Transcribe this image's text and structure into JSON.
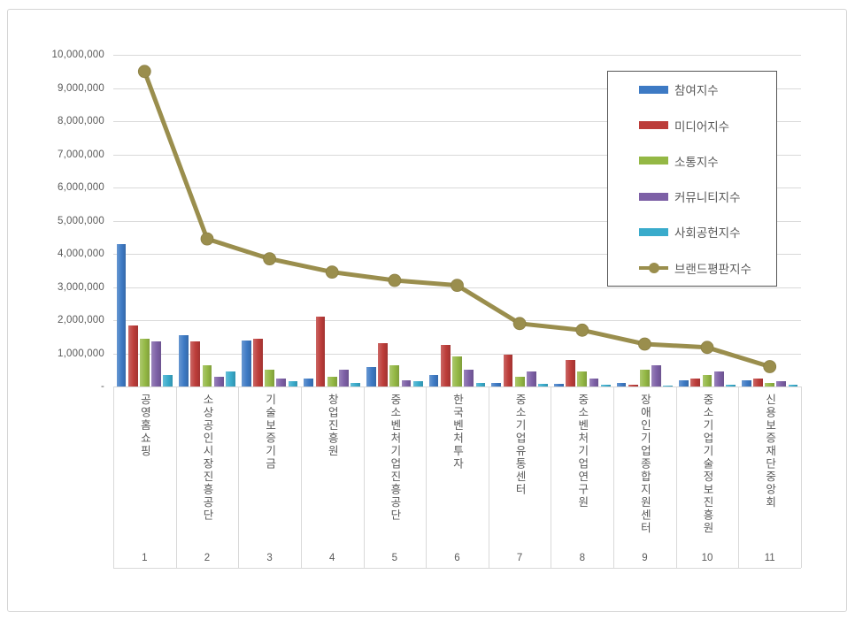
{
  "chart_data": {
    "type": "bar+line",
    "title": "",
    "xlabel": "",
    "ylabel": "",
    "ylim": [
      0,
      10000000
    ],
    "ytick_interval": 1000000,
    "ytick_labels": [
      "-",
      "1,000,000",
      "2,000,000",
      "3,000,000",
      "4,000,000",
      "5,000,000",
      "6,000,000",
      "7,000,000",
      "8,000,000",
      "9,000,000",
      "10,000,000"
    ],
    "grid": true,
    "legend_position": "upper-right-overlay",
    "categories": [
      "공영홈쇼핑",
      "소상공인시장진흥공단",
      "기술보증기금",
      "창업진흥원",
      "중소벤처기업진흥공단",
      "한국벤처투자",
      "중소기업유통센터",
      "중소벤처기업연구원",
      "장애인기업종합지원센터",
      "중소기업기술정보진흥원",
      "신용보증재단중앙회"
    ],
    "category_numbers": [
      "1",
      "2",
      "3",
      "4",
      "5",
      "6",
      "7",
      "8",
      "9",
      "10",
      "11"
    ],
    "series": [
      {
        "name": "참여지수",
        "key": "participation",
        "type": "bar",
        "color": "#3d7ac4",
        "values": [
          4300000,
          1550000,
          1400000,
          250000,
          600000,
          350000,
          100000,
          80000,
          100000,
          200000,
          180000
        ]
      },
      {
        "name": "미디어지수",
        "key": "media",
        "type": "bar",
        "color": "#bc3c39",
        "values": [
          1850000,
          1350000,
          1450000,
          2100000,
          1300000,
          1250000,
          950000,
          800000,
          60000,
          250000,
          230000
        ]
      },
      {
        "name": "소통지수",
        "key": "communication",
        "type": "bar",
        "color": "#94b845",
        "values": [
          1450000,
          650000,
          500000,
          300000,
          650000,
          900000,
          300000,
          450000,
          500000,
          350000,
          120000
        ]
      },
      {
        "name": "커뮤니티지수",
        "key": "community",
        "type": "bar",
        "color": "#7d60a6",
        "values": [
          1350000,
          300000,
          250000,
          500000,
          200000,
          500000,
          450000,
          250000,
          650000,
          450000,
          150000
        ]
      },
      {
        "name": "사회공헌지수",
        "key": "social-contribution",
        "type": "bar",
        "color": "#39abcb",
        "values": [
          350000,
          450000,
          150000,
          100000,
          150000,
          100000,
          80000,
          50000,
          30000,
          50000,
          50000
        ]
      },
      {
        "name": "브랜드평판지수",
        "key": "brand-reputation",
        "type": "line",
        "color": "#9a8e4d",
        "values": [
          9500000,
          4450000,
          3850000,
          3450000,
          3200000,
          3050000,
          1900000,
          1700000,
          1280000,
          1180000,
          600000
        ]
      }
    ]
  },
  "style_colors": {
    "gridline": "#d9d9d9",
    "axis_text": "#595959",
    "frame_border": "#d5d5d5",
    "legend_border": "#555555",
    "background": "#ffffff"
  }
}
